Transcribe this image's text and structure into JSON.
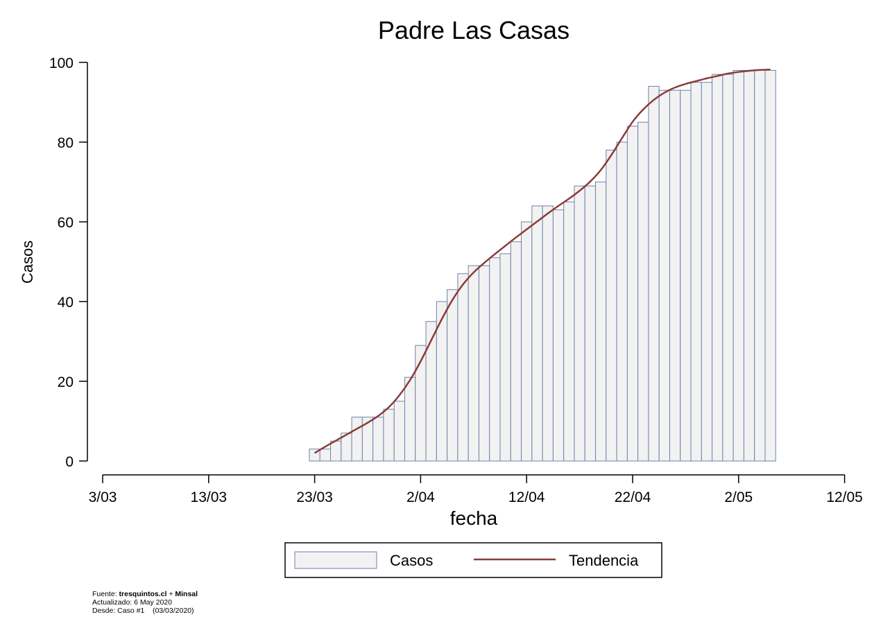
{
  "chart_data": {
    "type": "bar",
    "title": "Padre Las Casas",
    "xlabel": "fecha",
    "ylabel": "Casos",
    "ylim": [
      0,
      100
    ],
    "yticks": [
      0,
      20,
      40,
      60,
      80,
      100
    ],
    "xlim_days": [
      0,
      70
    ],
    "xtick_labels": [
      "3/03",
      "13/03",
      "23/03",
      "2/04",
      "12/04",
      "22/04",
      "2/05",
      "12/05"
    ],
    "x_start": "2020-03-23",
    "bar_color": "#f2f2f2",
    "bar_edge_color": "#6f82a6",
    "trend_color": "#8b3a3a",
    "series": [
      {
        "name": "Casos",
        "values": [
          3,
          3,
          5,
          7,
          11,
          11,
          11,
          13,
          15,
          21,
          29,
          35,
          40,
          43,
          47,
          49,
          49,
          51,
          52,
          55,
          60,
          64,
          64,
          63,
          65,
          69,
          69,
          70,
          78,
          80,
          84,
          85,
          94,
          93,
          93,
          93,
          95,
          95,
          97,
          97,
          98,
          98,
          98,
          98
        ]
      },
      {
        "name": "Tendencia",
        "values": [
          2,
          3.6,
          5.1,
          6.6,
          8.1,
          9.6,
          11.3,
          13.5,
          16.5,
          20.3,
          25,
          30.3,
          35.6,
          40.4,
          44.3,
          47.3,
          49.7,
          51.9,
          54,
          56.1,
          58.1,
          60.1,
          62.1,
          64,
          65.8,
          67.8,
          70.1,
          73,
          76.8,
          81,
          85.1,
          88.2,
          90.6,
          92.4,
          93.7,
          94.6,
          95.3,
          96,
          96.6,
          97.2,
          97.6,
          97.9,
          98.1,
          98.2
        ]
      }
    ],
    "legend": {
      "position": "bottom",
      "labels": [
        "Casos",
        "Tendencia"
      ]
    },
    "grid": false
  },
  "footer": {
    "fuente_prefix": "Fuente:",
    "fuente_source_a": "tresquintos.cl",
    "fuente_plus": "+",
    "fuente_source_b": "Minsal",
    "actualizado": "Actualizado: 6 May 2020",
    "desde": "Desde: Caso #1    (03/03/2020)"
  }
}
